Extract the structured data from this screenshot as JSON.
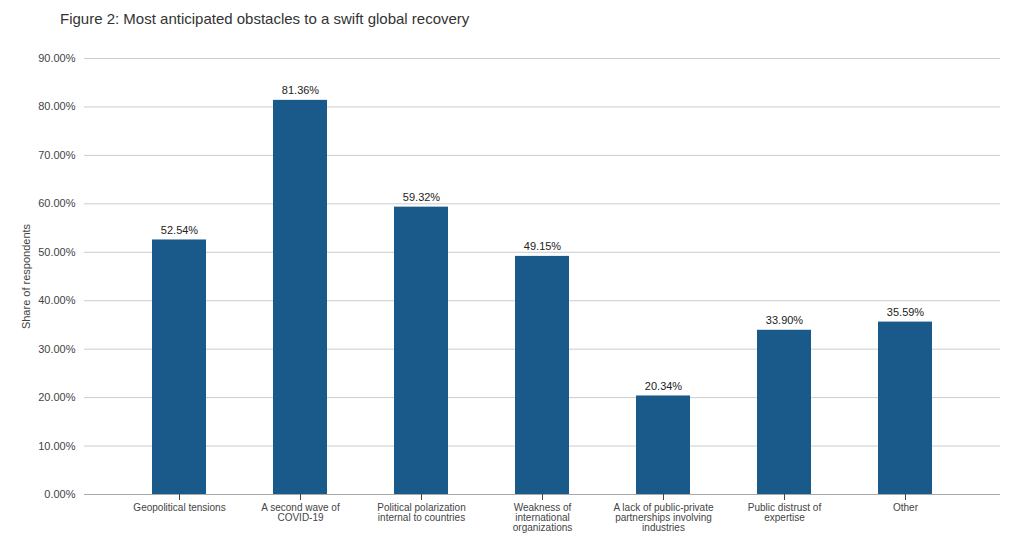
{
  "chart_data": {
    "type": "bar",
    "title": "Figure 2: Most anticipated obstacles to a swift global recovery",
    "categories": [
      "Geopolitical tensions",
      "A second wave of\nCOVID-19",
      "Political polarization\ninternal to countries",
      "Weakness of\ninternational\norganizations",
      "A lack of public-private\npartnerships involving\nindustries",
      "Public distrust of\nexpertise",
      "Other"
    ],
    "values": [
      52.54,
      81.36,
      59.32,
      49.15,
      20.34,
      33.9,
      35.59
    ],
    "value_labels": [
      "52.54%",
      "81.36%",
      "59.32%",
      "49.15%",
      "20.34%",
      "33.90%",
      "35.59%"
    ],
    "data_labels": true,
    "color": "#1a5a8a",
    "ylabel": "Share of respondents",
    "ylim": [
      0,
      90
    ],
    "yticks": [
      {
        "value": 0,
        "label": "0.00%"
      },
      {
        "value": 10,
        "label": "10.00%"
      },
      {
        "value": 20,
        "label": "20.00%"
      },
      {
        "value": 30,
        "label": "30.00%"
      },
      {
        "value": 40,
        "label": "40.00%"
      },
      {
        "value": 50,
        "label": "50.00%"
      },
      {
        "value": 60,
        "label": "60.00%"
      },
      {
        "value": 70,
        "label": "70.00%"
      },
      {
        "value": 80,
        "label": "80.00%"
      },
      {
        "value": 90,
        "label": "90.00%"
      }
    ],
    "grid": true
  }
}
